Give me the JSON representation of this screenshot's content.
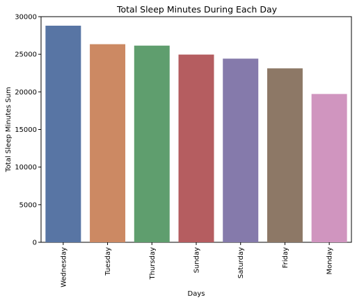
{
  "chart_data": {
    "type": "bar",
    "title": "Total Sleep Minutes During Each Day",
    "xlabel": "Days",
    "ylabel": "Total Sleep Minutes Sum",
    "ylim": [
      0,
      30000
    ],
    "yticks": [
      0,
      5000,
      10000,
      15000,
      20000,
      25000,
      30000
    ],
    "categories": [
      "Wednesday",
      "Tuesday",
      "Thursday",
      "Sunday",
      "Saturday",
      "Friday",
      "Monday"
    ],
    "values": [
      28800,
      26340,
      26150,
      24960,
      24420,
      23130,
      19720
    ],
    "colors": [
      "#5875a4",
      "#cc8963",
      "#5f9e6e",
      "#b55d60",
      "#857aab",
      "#8d7866",
      "#d095bf"
    ],
    "grid": false,
    "legend": "none"
  }
}
